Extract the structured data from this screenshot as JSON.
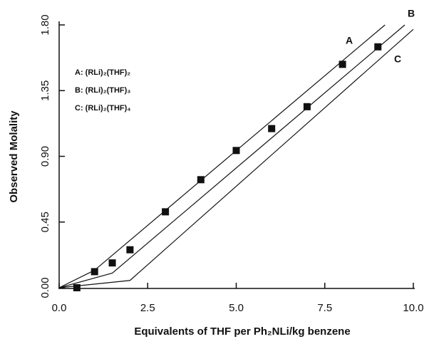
{
  "chart_data": {
    "type": "scatter",
    "x_label": "Equivalents of THF per Ph₂NLi/kg benzene",
    "y_label": "Observed Molality",
    "x": [
      0.5,
      1,
      1.5,
      2,
      3,
      4,
      5,
      6,
      7,
      8,
      9
    ],
    "values": [
      0.0,
      0.11,
      0.17,
      0.26,
      0.52,
      0.74,
      0.94,
      1.09,
      1.24,
      1.53,
      1.65
    ],
    "color": "#111111",
    "lines": [
      {
        "label": "A",
        "x": [
          0,
          1,
          9.2
        ],
        "values": [
          0,
          0.12,
          1.8
        ]
      },
      {
        "label": "B",
        "x": [
          0,
          1.5,
          9.76
        ],
        "values": [
          0,
          0.1,
          1.8
        ]
      },
      {
        "label": "C",
        "x": [
          0,
          2,
          10
        ],
        "values": [
          0,
          0.05,
          1.77
        ]
      }
    ],
    "legend": [
      "A: (RLi)₂(THF)₂",
      "B: (RLi)₂(THF)₃",
      "C: (RLi)₂(THF)₄"
    ],
    "xlim": [
      0,
      10
    ],
    "ylim": [
      0,
      1.8
    ],
    "xticks": [
      {
        "value": 0,
        "label": "0.0"
      },
      {
        "value": 2.5,
        "label": "2.5"
      },
      {
        "value": 5,
        "label": "5.0"
      },
      {
        "value": 7.5,
        "label": "7.5"
      },
      {
        "value": 10,
        "label": "10.0"
      }
    ],
    "yticks": [
      {
        "value": 0,
        "label": "0.00"
      },
      {
        "value": 0.45,
        "label": "0.45"
      },
      {
        "value": 0.9,
        "label": "0.90"
      },
      {
        "value": 1.35,
        "label": "1.35"
      },
      {
        "value": 1.8,
        "label": "1.80"
      }
    ]
  }
}
